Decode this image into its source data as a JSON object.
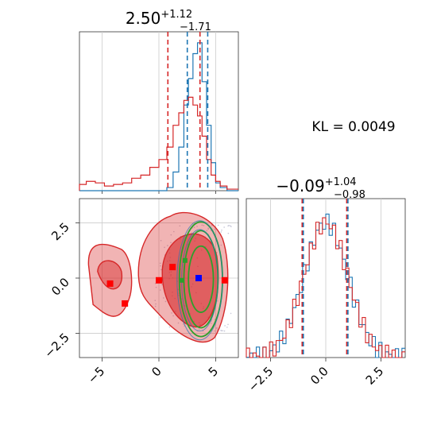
{
  "colors": {
    "series_a": "#d62728",
    "series_b": "#1f77b4",
    "contour_green": "#2ca02c",
    "marker_blue": "#0000ff",
    "marker_red": "#ff0000",
    "grid": "#cccccc",
    "axis": "#333333"
  },
  "kl_text": "KL = 0.0049",
  "chart_data": [
    {
      "type": "line",
      "panel": "top-left marginal histogram",
      "title_main": "2.50",
      "title_sup": "+1.12",
      "title_sub": "−1.71",
      "xlim": [
        -7,
        7
      ],
      "grid": true,
      "x": [
        -6.8,
        -6.0,
        -5.2,
        -4.4,
        -3.6,
        -2.8,
        -2.0,
        -1.2,
        -0.4,
        0.4,
        1.0,
        1.5,
        2.0,
        2.4,
        2.8,
        3.2,
        3.6,
        4.0,
        4.4,
        4.8,
        5.2,
        5.6,
        6.4
      ],
      "series": [
        {
          "values": [
            0.0,
            0.0,
            0.0,
            0.0,
            0.0,
            0.0,
            0.0,
            0.0,
            0.0,
            0.0,
            0.02,
            0.12,
            0.28,
            0.55,
            0.72,
            0.88,
            0.95,
            0.7,
            0.42,
            0.18,
            0.05,
            0.02,
            0.0
          ]
        },
        {
          "values": [
            0.04,
            0.06,
            0.05,
            0.03,
            0.04,
            0.05,
            0.08,
            0.1,
            0.15,
            0.2,
            0.28,
            0.42,
            0.5,
            0.58,
            0.6,
            0.55,
            0.48,
            0.35,
            0.2,
            0.1,
            0.06,
            0.03,
            0.01
          ]
        }
      ],
      "vlines": [
        {
          "x": 0.79,
          "color": "#d62728"
        },
        {
          "x": 2.5,
          "color": "#1f77b4"
        },
        {
          "x": 3.62,
          "color": "#d62728"
        },
        {
          "x": 4.3,
          "color": "#1f77b4"
        }
      ]
    },
    {
      "type": "scatter",
      "panel": "bottom-left 2D contour",
      "xlim": [
        -7,
        7
      ],
      "ylim": [
        -3.6,
        3.6
      ],
      "xticks": [
        "−5",
        "0",
        "5"
      ],
      "xtick_values": [
        -5,
        0,
        5
      ],
      "yticks": [
        "2.5",
        "0.0",
        "−2.5"
      ],
      "ytick_values": [
        2.5,
        0.0,
        -2.5
      ],
      "grid": true,
      "red_markers": [
        [
          -4.3,
          -0.25
        ],
        [
          -3.0,
          -1.15
        ],
        [
          0.0,
          -0.1
        ],
        [
          5.8,
          -0.1
        ],
        [
          1.2,
          0.5
        ]
      ],
      "blue_markers": [
        [
          3.5,
          0.0
        ]
      ],
      "green_markers": [
        [
          2.3,
          0.8
        ],
        [
          2.0,
          -0.1
        ]
      ]
    },
    {
      "type": "line",
      "panel": "bottom-right marginal histogram",
      "title_main": "−0.09",
      "title_sup": "+1.04",
      "title_sub": "−0.98",
      "xlim": [
        -3.6,
        3.6
      ],
      "xticks": [
        "−2.5",
        "0.0",
        "2.5"
      ],
      "xtick_values": [
        -2.5,
        0.0,
        2.5
      ],
      "grid": true,
      "vlines": [
        {
          "x": -1.07,
          "color": "#d62728"
        },
        {
          "x": -1.07,
          "color": "#1f77b4"
        },
        {
          "x": 0.95,
          "color": "#d62728"
        },
        {
          "x": 0.95,
          "color": "#1f77b4"
        }
      ]
    }
  ]
}
